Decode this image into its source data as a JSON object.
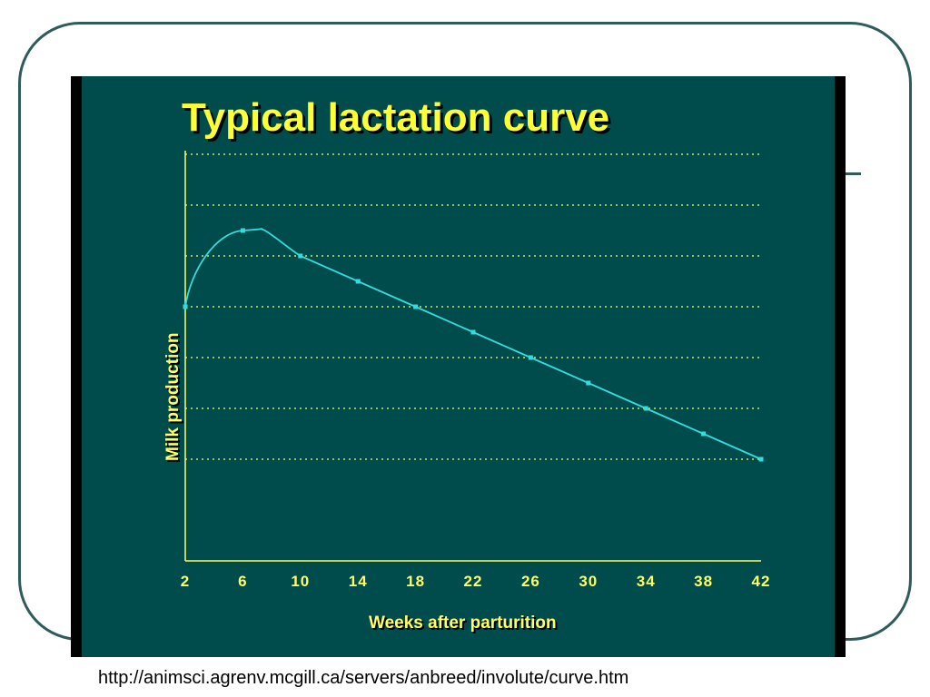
{
  "slide": {
    "source_url": "http://animsci.agrenv.mcgill.ca/servers/anbreed/involute/curve.htm"
  },
  "colors": {
    "panel_bg": "#004b4b",
    "text": "#ffff66",
    "curve": "#33dddd",
    "grid": "#ffff66",
    "frame": "#2f5b5b"
  },
  "chart_data": {
    "type": "line",
    "title": "Typical lactation curve",
    "xlabel": "Weeks after parturition",
    "ylabel": "Milk production",
    "x_ticks": [
      2,
      6,
      10,
      14,
      18,
      22,
      26,
      30,
      34,
      38,
      42
    ],
    "xlim": [
      2,
      42
    ],
    "ylim": [
      0,
      7
    ],
    "grid": {
      "horizontal": true,
      "style": "dotted",
      "lines": 7
    },
    "series": [
      {
        "x": [
          2,
          6,
          10,
          14,
          18,
          22,
          26,
          30,
          34,
          38,
          42
        ],
        "y": [
          4.0,
          5.5,
          5.0,
          4.5,
          4.0,
          3.5,
          3.0,
          2.5,
          2.0,
          1.5,
          1.0
        ]
      }
    ],
    "peak": {
      "x": 6.8,
      "y": 5.55
    }
  }
}
